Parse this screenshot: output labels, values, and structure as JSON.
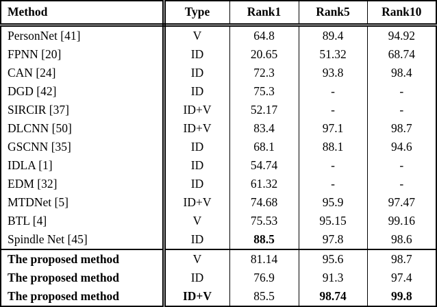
{
  "colors": {
    "background": "#ffffff",
    "text": "#000000",
    "border": "#000000"
  },
  "table": {
    "headers": [
      {
        "label": "Method"
      },
      {
        "label": "Type"
      },
      {
        "label": "Rank1"
      },
      {
        "label": "Rank5"
      },
      {
        "label": "Rank10"
      }
    ],
    "rows": [
      {
        "group": "baseline",
        "cells": [
          {
            "text": "PersonNet [41]",
            "bold": false
          },
          {
            "text": "V",
            "bold": false
          },
          {
            "text": "64.8",
            "bold": false
          },
          {
            "text": "89.4",
            "bold": false
          },
          {
            "text": "94.92",
            "bold": false
          }
        ]
      },
      {
        "group": "baseline",
        "cells": [
          {
            "text": "FPNN [20]",
            "bold": false
          },
          {
            "text": "ID",
            "bold": false
          },
          {
            "text": "20.65",
            "bold": false
          },
          {
            "text": "51.32",
            "bold": false
          },
          {
            "text": "68.74",
            "bold": false
          }
        ]
      },
      {
        "group": "baseline",
        "cells": [
          {
            "text": "CAN [24]",
            "bold": false
          },
          {
            "text": "ID",
            "bold": false
          },
          {
            "text": "72.3",
            "bold": false
          },
          {
            "text": "93.8",
            "bold": false
          },
          {
            "text": "98.4",
            "bold": false
          }
        ]
      },
      {
        "group": "baseline",
        "cells": [
          {
            "text": "DGD [42]",
            "bold": false
          },
          {
            "text": "ID",
            "bold": false
          },
          {
            "text": "75.3",
            "bold": false
          },
          {
            "text": "-",
            "bold": false
          },
          {
            "text": "-",
            "bold": false
          }
        ]
      },
      {
        "group": "baseline",
        "cells": [
          {
            "text": "SIRCIR [37]",
            "bold": false
          },
          {
            "text": "ID+V",
            "bold": false
          },
          {
            "text": "52.17",
            "bold": false
          },
          {
            "text": "-",
            "bold": false
          },
          {
            "text": "-",
            "bold": false
          }
        ]
      },
      {
        "group": "baseline",
        "cells": [
          {
            "text": "DLCNN [50]",
            "bold": false
          },
          {
            "text": "ID+V",
            "bold": false
          },
          {
            "text": "83.4",
            "bold": false
          },
          {
            "text": "97.1",
            "bold": false
          },
          {
            "text": "98.7",
            "bold": false
          }
        ]
      },
      {
        "group": "baseline",
        "cells": [
          {
            "text": "GSCNN [35]",
            "bold": false
          },
          {
            "text": "ID",
            "bold": false
          },
          {
            "text": "68.1",
            "bold": false
          },
          {
            "text": "88.1",
            "bold": false
          },
          {
            "text": "94.6",
            "bold": false
          }
        ]
      },
      {
        "group": "baseline",
        "cells": [
          {
            "text": "IDLA [1]",
            "bold": false
          },
          {
            "text": "ID",
            "bold": false
          },
          {
            "text": "54.74",
            "bold": false
          },
          {
            "text": "-",
            "bold": false
          },
          {
            "text": "-",
            "bold": false
          }
        ]
      },
      {
        "group": "baseline",
        "cells": [
          {
            "text": "EDM [32]",
            "bold": false
          },
          {
            "text": "ID",
            "bold": false
          },
          {
            "text": "61.32",
            "bold": false
          },
          {
            "text": "-",
            "bold": false
          },
          {
            "text": "-",
            "bold": false
          }
        ]
      },
      {
        "group": "baseline",
        "cells": [
          {
            "text": "MTDNet [5]",
            "bold": false
          },
          {
            "text": "ID+V",
            "bold": false
          },
          {
            "text": "74.68",
            "bold": false
          },
          {
            "text": "95.9",
            "bold": false
          },
          {
            "text": "97.47",
            "bold": false
          }
        ]
      },
      {
        "group": "baseline",
        "cells": [
          {
            "text": "BTL [4]",
            "bold": false
          },
          {
            "text": "V",
            "bold": false
          },
          {
            "text": "75.53",
            "bold": false
          },
          {
            "text": "95.15",
            "bold": false
          },
          {
            "text": "99.16",
            "bold": false
          }
        ]
      },
      {
        "group": "baseline",
        "cells": [
          {
            "text": "Spindle Net [45]",
            "bold": false
          },
          {
            "text": "ID",
            "bold": false
          },
          {
            "text": "88.5",
            "bold": true
          },
          {
            "text": "97.8",
            "bold": false
          },
          {
            "text": "98.6",
            "bold": false
          }
        ]
      },
      {
        "group": "proposed",
        "cells": [
          {
            "text": "The proposed method",
            "bold": true
          },
          {
            "text": "V",
            "bold": false
          },
          {
            "text": "81.14",
            "bold": false
          },
          {
            "text": "95.6",
            "bold": false
          },
          {
            "text": "98.7",
            "bold": false
          }
        ]
      },
      {
        "group": "proposed",
        "cells": [
          {
            "text": "The proposed method",
            "bold": true
          },
          {
            "text": "ID",
            "bold": false
          },
          {
            "text": "76.9",
            "bold": false
          },
          {
            "text": "91.3",
            "bold": false
          },
          {
            "text": "97.4",
            "bold": false
          }
        ]
      },
      {
        "group": "proposed",
        "cells": [
          {
            "text": "The proposed method",
            "bold": true
          },
          {
            "text": "ID+V",
            "bold": true
          },
          {
            "text": "85.5",
            "bold": false
          },
          {
            "text": "98.74",
            "bold": true
          },
          {
            "text": "99.8",
            "bold": true
          }
        ]
      }
    ]
  }
}
